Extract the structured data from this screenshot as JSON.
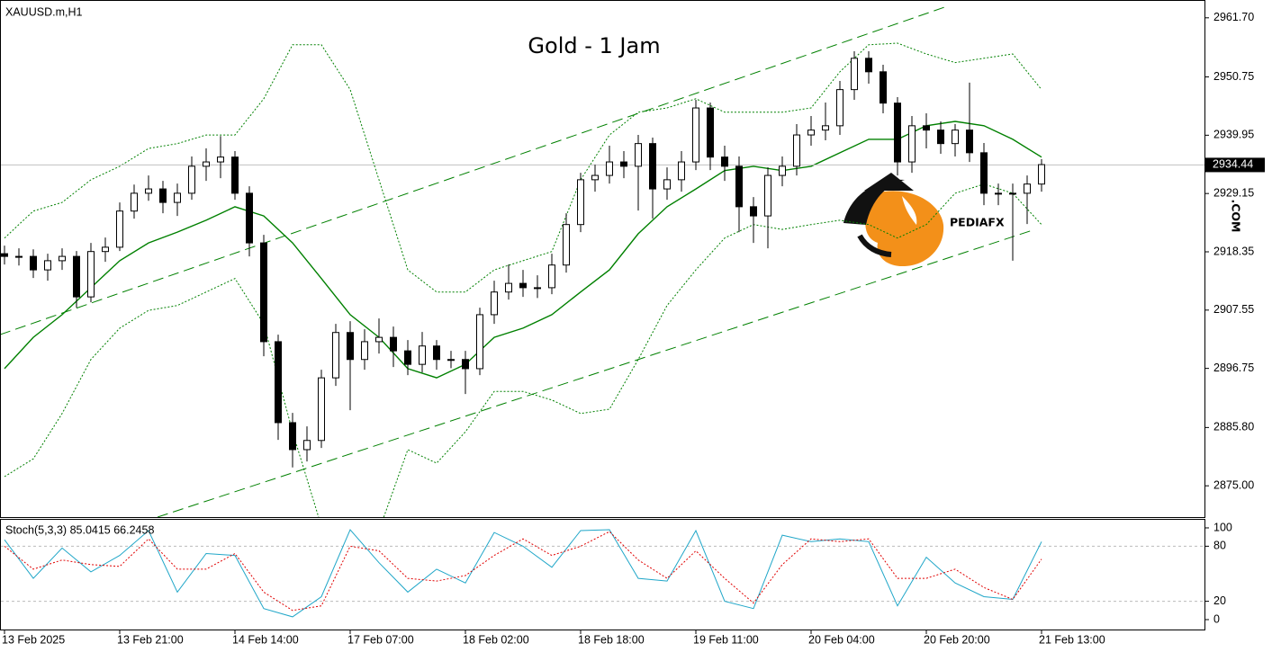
{
  "chart_data": [
    {
      "type": "candlestick",
      "symbol": "XAUUSD.m,H1",
      "title": "Gold - 1 Jam",
      "watermark": {
        "text": "PEDIAFX",
        "suffix": ".COM"
      },
      "x": [
        0,
        2,
        4,
        6,
        8,
        10,
        12,
        14,
        16,
        18,
        20,
        22,
        24,
        26,
        28,
        30,
        32,
        34,
        36,
        38,
        40,
        42,
        44,
        46,
        48,
        50,
        52,
        54,
        56,
        58,
        60,
        62,
        64,
        66,
        68,
        70,
        72,
        74,
        76,
        78,
        80,
        82,
        84,
        86,
        88,
        90,
        92,
        94,
        96,
        98,
        100,
        102,
        104,
        106,
        108,
        110,
        112,
        114,
        116,
        118,
        120,
        122,
        124,
        126,
        128,
        130,
        132,
        134,
        136,
        138,
        140,
        142,
        144
      ],
      "open": [
        2918.0,
        2917.5,
        2917.5,
        2915.0,
        2916.7,
        2917.5,
        2910.0,
        2918.4,
        2919.2,
        2925.9,
        2929.2,
        2930.0,
        2927.5,
        2929.2,
        2934.2,
        2935.0,
        2935.9,
        2929.2,
        2920.0,
        2901.7,
        2886.7,
        2881.7,
        2883.4,
        2895.0,
        2903.4,
        2898.4,
        2901.7,
        2902.5,
        2900.0,
        2897.5,
        2900.9,
        2898.4,
        2898.4,
        2896.7,
        2906.7,
        2910.9,
        2912.5,
        2911.7,
        2911.7,
        2915.9,
        2923.4,
        2931.7,
        2932.5,
        2935.0,
        2934.2,
        2938.4,
        2930.0,
        2931.7,
        2935.0,
        2945.0,
        2935.9,
        2934.2,
        2926.7,
        2925.0,
        2932.5,
        2934.2,
        2940.0,
        2940.9,
        2941.7,
        2948.4,
        2954.2,
        2951.7,
        2945.9,
        2935.0,
        2941.7,
        2940.9,
        2938.4,
        2940.9,
        2936.7,
        2929.2,
        2929.2,
        2929.2,
        2930.9
      ],
      "high": [
        2919.5,
        2919.0,
        2918.8,
        2918.0,
        2919.0,
        2918.5,
        2920.0,
        2921.0,
        2927.5,
        2930.8,
        2932.5,
        2931.5,
        2931.0,
        2936.0,
        2937.5,
        2939.8,
        2937.0,
        2930.5,
        2921.5,
        2903.0,
        2888.5,
        2886.0,
        2896.5,
        2905.0,
        2905.5,
        2904.0,
        2906.0,
        2904.5,
        2902.0,
        2903.5,
        2902.0,
        2900.0,
        2900.0,
        2908.0,
        2913.0,
        2916.0,
        2915.0,
        2914.0,
        2918.0,
        2925.5,
        2933.0,
        2934.5,
        2938.0,
        2937.0,
        2940.0,
        2939.5,
        2934.0,
        2937.0,
        2946.5,
        2946.0,
        2938.0,
        2936.0,
        2928.5,
        2934.0,
        2936.0,
        2942.0,
        2943.5,
        2946.0,
        2950.0,
        2955.5,
        2955.5,
        2953.0,
        2947.0,
        2943.5,
        2944.0,
        2942.5,
        2942.0,
        2949.7,
        2938.5,
        2931.0,
        2931.0,
        2932.5,
        2935.5
      ],
      "low": [
        2916.0,
        2915.8,
        2913.5,
        2913.0,
        2915.0,
        2908.0,
        2909.0,
        2916.5,
        2918.5,
        2924.5,
        2927.8,
        2925.5,
        2925.0,
        2928.0,
        2931.5,
        2932.0,
        2928.0,
        2917.5,
        2899.0,
        2883.5,
        2878.4,
        2879.5,
        2882.0,
        2893.5,
        2889.0,
        2896.5,
        2899.5,
        2897.0,
        2895.5,
        2896.0,
        2896.5,
        2896.8,
        2892.0,
        2895.5,
        2905.0,
        2909.5,
        2910.0,
        2909.8,
        2910.5,
        2914.5,
        2922.0,
        2929.5,
        2931.0,
        2932.0,
        2926.0,
        2924.5,
        2928.0,
        2929.5,
        2933.5,
        2933.5,
        2931.5,
        2922.0,
        2920.0,
        2919.0,
        2930.5,
        2932.5,
        2938.0,
        2939.0,
        2940.0,
        2946.5,
        2949.5,
        2944.0,
        2932.5,
        2933.0,
        2937.5,
        2936.5,
        2936.0,
        2935.0,
        2927.0,
        2927.0,
        2916.7,
        2923.5,
        2929.5
      ],
      "close": [
        2917.5,
        2917.5,
        2915.0,
        2916.7,
        2917.5,
        2910.0,
        2918.4,
        2919.2,
        2925.9,
        2929.2,
        2930.0,
        2927.5,
        2929.2,
        2934.2,
        2935.0,
        2935.9,
        2929.2,
        2920.0,
        2901.7,
        2886.7,
        2881.7,
        2883.4,
        2895.0,
        2903.4,
        2898.4,
        2901.7,
        2902.5,
        2900.0,
        2897.5,
        2900.9,
        2898.4,
        2898.4,
        2896.7,
        2906.7,
        2910.9,
        2912.5,
        2911.7,
        2911.7,
        2915.9,
        2923.4,
        2931.7,
        2932.5,
        2935.0,
        2934.2,
        2938.4,
        2930.0,
        2931.7,
        2935.0,
        2945.0,
        2935.9,
        2934.2,
        2926.7,
        2925.0,
        2932.5,
        2934.2,
        2940.0,
        2940.9,
        2941.7,
        2948.4,
        2954.2,
        2951.7,
        2945.9,
        2935.0,
        2941.7,
        2940.9,
        2938.4,
        2940.9,
        2936.7,
        2929.2,
        2929.2,
        2929.2,
        2930.9,
        2934.5
      ],
      "up_color": "#ffffff",
      "down_color": "#000000",
      "lines": [
        {
          "color": "#008000",
          "style": "solid",
          "x": [
            0,
            4,
            8,
            12,
            16,
            20,
            24,
            28,
            32,
            36,
            40,
            44,
            48,
            52,
            56,
            60,
            64,
            68,
            72,
            76,
            80,
            84,
            88,
            92,
            96,
            100,
            104,
            108,
            112,
            116,
            120,
            124,
            128,
            132,
            136,
            140,
            144
          ],
          "values": [
            2896.7,
            2902.5,
            2906.7,
            2911.7,
            2916.7,
            2920.0,
            2922.0,
            2924.2,
            2926.7,
            2925.0,
            2920.0,
            2913.4,
            2906.7,
            2902.5,
            2896.7,
            2895.0,
            2897.5,
            2902.5,
            2904.2,
            2906.7,
            2910.9,
            2915.0,
            2921.7,
            2926.7,
            2930.0,
            2933.4,
            2934.2,
            2933.4,
            2934.2,
            2936.7,
            2939.2,
            2939.2,
            2941.7,
            2942.5,
            2941.7,
            2939.2,
            2935.9
          ]
        },
        {
          "color": "#008000",
          "style": "dotted",
          "x": [
            0,
            4,
            8,
            12,
            16,
            20,
            24,
            28,
            32,
            36,
            40,
            44,
            48,
            52,
            56,
            60,
            64,
            68,
            72,
            76,
            80,
            84,
            88,
            92,
            96,
            100,
            104,
            108,
            112,
            116,
            120,
            124,
            128,
            132,
            136,
            140,
            144
          ],
          "values": [
            2920.9,
            2925.9,
            2927.5,
            2931.7,
            2934.2,
            2937.5,
            2938.4,
            2940.0,
            2940.0,
            2946.7,
            2956.7,
            2956.7,
            2948.4,
            2931.7,
            2915.0,
            2910.9,
            2910.9,
            2915.0,
            2916.7,
            2918.4,
            2931.7,
            2940.0,
            2944.2,
            2945.0,
            2946.7,
            2944.2,
            2944.2,
            2944.2,
            2945.0,
            2951.7,
            2956.7,
            2957.0,
            2955.0,
            2953.4,
            2954.2,
            2955.0,
            2948.4
          ]
        },
        {
          "color": "#008000",
          "style": "dotted",
          "x": [
            0,
            4,
            8,
            12,
            16,
            20,
            24,
            28,
            32,
            36,
            40,
            44,
            48,
            52,
            56,
            60,
            64,
            68,
            72,
            76,
            80,
            84,
            88,
            92,
            96,
            100,
            104,
            108,
            112,
            116,
            120,
            124,
            128,
            132,
            136,
            140,
            144
          ],
          "values": [
            2876.7,
            2880.0,
            2888.4,
            2898.4,
            2904.2,
            2907.5,
            2908.4,
            2910.9,
            2913.4,
            2905.0,
            2885.0,
            2867.5,
            2865.0,
            2866.7,
            2881.7,
            2879.2,
            2885.0,
            2892.5,
            2892.5,
            2890.9,
            2888.4,
            2889.2,
            2898.4,
            2908.4,
            2915.0,
            2920.9,
            2923.4,
            2922.5,
            2923.4,
            2924.2,
            2923.4,
            2920.9,
            2923.4,
            2929.2,
            2930.9,
            2929.2,
            2923.4
          ]
        },
        {
          "color": "#008000",
          "style": "dashed",
          "x": [
            -0.625,
            130.6
          ],
          "values": [
            2903.0,
            2963.7
          ]
        },
        {
          "color": "#008000",
          "style": "dashed",
          "x": [
            21.25,
            143.1
          ],
          "values": [
            2869.2,
            2922.5
          ]
        }
      ],
      "price_line": 2934.44,
      "xlim": [
        -0.625,
        166.625
      ],
      "xticks": [
        {
          "value": 0,
          "label": "13 Feb 2025"
        },
        {
          "value": 16,
          "label": "13 Feb 21:00"
        },
        {
          "value": 32,
          "label": "14 Feb 14:00"
        },
        {
          "value": 48,
          "label": "17 Feb 07:00"
        },
        {
          "value": 64,
          "label": "18 Feb 02:00"
        },
        {
          "value": 80,
          "label": "18 Feb 18:00"
        },
        {
          "value": 96,
          "label": "19 Feb 11:00"
        },
        {
          "value": 112,
          "label": "20 Feb 04:00"
        },
        {
          "value": 128,
          "label": "20 Feb 20:00"
        },
        {
          "value": 144,
          "label": "21 Feb 13:00"
        }
      ],
      "ylim": [
        2869.2,
        2965.0
      ],
      "yticks": [
        {
          "value": 2961.7,
          "label": "2961.70"
        },
        2950.75,
        {
          "value": 2939.95,
          "label": "2939.95"
        },
        2929.15,
        2918.35,
        2907.55,
        2896.75,
        {
          "value": 2885.8,
          "label": "2885.80"
        },
        {
          "value": 2875,
          "label": "2875.00"
        }
      ]
    },
    {
      "type": "line",
      "label": "Stoch(5,3,3) 85.0415 66.2458",
      "x": [
        0,
        4,
        8,
        12,
        16,
        20,
        24,
        28,
        32,
        36,
        40,
        44,
        48,
        52,
        56,
        60,
        64,
        68,
        72,
        76,
        80,
        84,
        88,
        92,
        96,
        100,
        104,
        108,
        112,
        116,
        120,
        124,
        128,
        132,
        136,
        140,
        144
      ],
      "series": [
        {
          "color": "#1fa6c8",
          "style": "solid",
          "values": [
            87,
            45,
            78,
            52,
            70,
            97,
            30,
            72,
            70,
            12,
            3,
            25,
            98,
            62,
            30,
            55,
            40,
            95,
            80,
            57,
            97,
            98,
            45,
            42,
            97,
            20,
            12,
            92,
            85,
            88,
            85,
            15,
            68,
            40,
            25,
            22,
            85
          ]
        },
        {
          "color": "#e00000",
          "style": "dotted",
          "values": [
            80,
            55,
            65,
            60,
            58,
            88,
            55,
            55,
            72,
            30,
            10,
            15,
            80,
            75,
            45,
            42,
            48,
            70,
            88,
            70,
            80,
            96,
            65,
            45,
            75,
            45,
            18,
            60,
            88,
            85,
            88,
            45,
            45,
            55,
            35,
            22,
            66
          ]
        }
      ],
      "levels": [
        80,
        20
      ],
      "xlim": [
        -0.625,
        166.625
      ],
      "ylim": [
        -10.8,
        108.8
      ],
      "yticks": [
        100,
        80,
        20,
        0
      ]
    }
  ]
}
